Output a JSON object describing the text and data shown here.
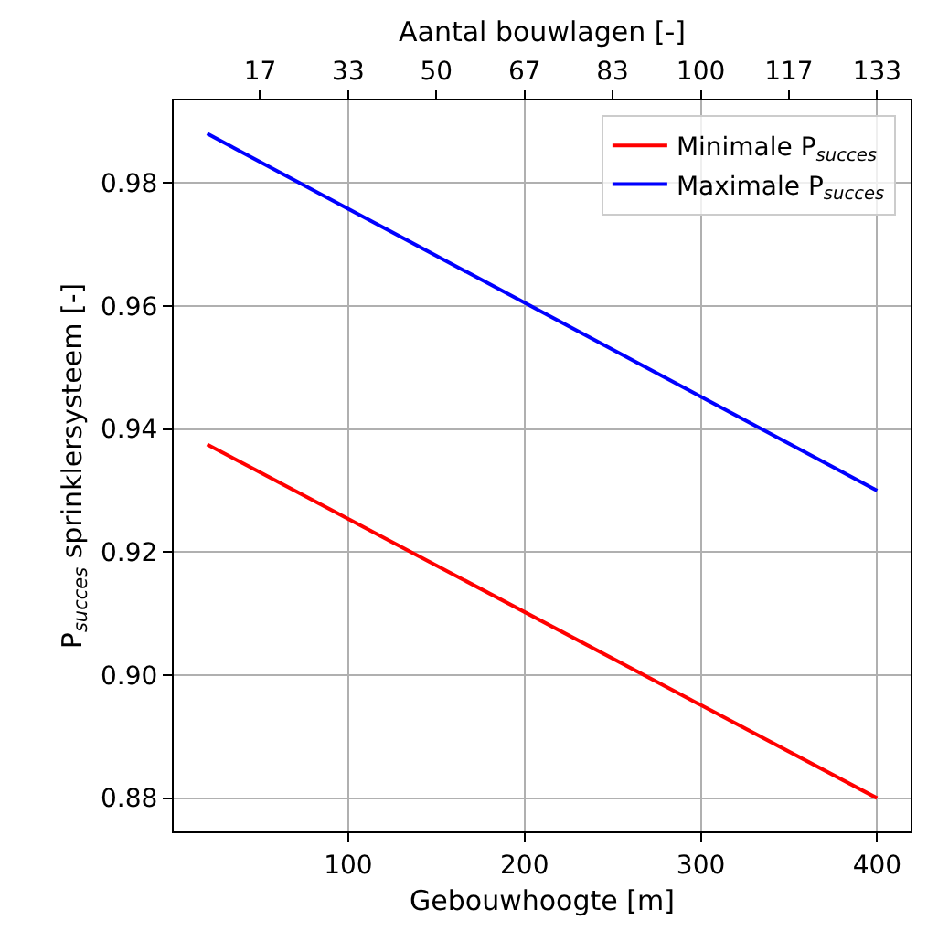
{
  "chart_data": {
    "type": "line",
    "xlabel": "Gebouwhoogte [m]",
    "ylabel": "P$_{succes}$ sprinklersysteem [-]",
    "x2label": "Aantal bouwlagen [-]",
    "x": [
      20,
      400
    ],
    "series": [
      {
        "name": "Minimale P$_{succes}$",
        "color": "#ff0000",
        "values": [
          0.9375,
          0.88
        ]
      },
      {
        "name": "Maximale P$_{succes}$",
        "color": "#0000ff",
        "values": [
          0.988,
          0.93
        ]
      }
    ],
    "xlim": [
      1,
      419
    ],
    "xticks": [
      100,
      200,
      300,
      400
    ],
    "x2lim": [
      0.333,
      139.667
    ],
    "x2ticks": [
      {
        "value": 16.667,
        "label": "17"
      },
      {
        "value": 33.333,
        "label": "33"
      },
      {
        "value": 50,
        "label": "50"
      },
      {
        "value": 66.667,
        "label": "67"
      },
      {
        "value": 83.333,
        "label": "83"
      },
      {
        "value": 100,
        "label": "100"
      },
      {
        "value": 116.667,
        "label": "117"
      },
      {
        "value": 133.333,
        "label": "133"
      }
    ],
    "ylim": [
      0.8746,
      0.9934
    ],
    "yticks": [
      {
        "value": 0.88,
        "label": "0.88"
      },
      {
        "value": 0.9,
        "label": "0.90"
      },
      {
        "value": 0.92,
        "label": "0.92"
      },
      {
        "value": 0.94,
        "label": "0.94"
      },
      {
        "value": 0.96,
        "label": "0.96"
      },
      {
        "value": 0.98,
        "label": "0.98"
      }
    ],
    "grid": true,
    "legend": "top right",
    "line_style": "solid",
    "marker": "none"
  }
}
